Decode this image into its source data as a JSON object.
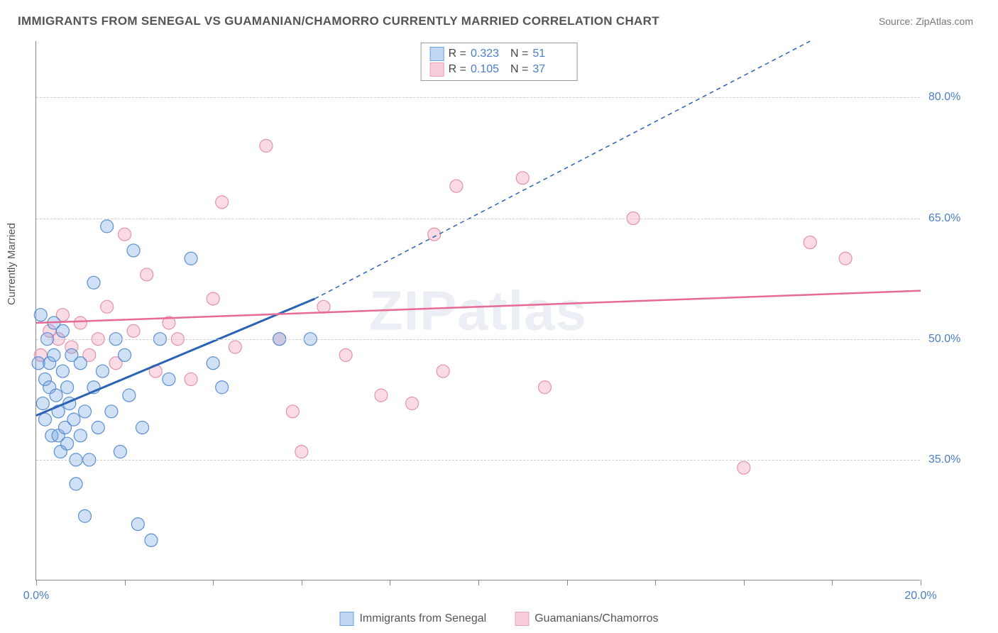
{
  "title": "IMMIGRANTS FROM SENEGAL VS GUAMANIAN/CHAMORRO CURRENTLY MARRIED CORRELATION CHART",
  "source_label": "Source: ZipAtlas.com",
  "ylabel": "Currently Married",
  "watermark": "ZIPatlas",
  "chart": {
    "type": "scatter",
    "xlim": [
      0,
      20
    ],
    "ylim": [
      20,
      87
    ],
    "x_ticks": [
      0,
      2,
      4,
      6,
      8,
      10,
      12,
      14,
      16,
      18,
      20
    ],
    "x_tick_labels_show": {
      "0": "0.0%",
      "20": "20.0%"
    },
    "y_grid": [
      35,
      50,
      65,
      80
    ],
    "y_tick_labels": {
      "35": "35.0%",
      "50": "50.0%",
      "65": "65.0%",
      "80": "80.0%"
    },
    "background_color": "#ffffff",
    "grid_color": "#cccccc",
    "axis_color": "#888888",
    "marker_radius": 9,
    "marker_stroke_width": 1.2,
    "series": [
      {
        "id": "senegal",
        "label": "Immigrants from Senegal",
        "fill": "rgba(120,165,225,0.35)",
        "stroke": "#5a8fd4",
        "swatch_fill": "#bfd7f2",
        "swatch_border": "#6aa3e0",
        "R": "0.323",
        "N": "51",
        "trend": {
          "x1": 0,
          "y1": 40.5,
          "x2": 6.3,
          "y2": 55,
          "ext_x2": 17.5,
          "ext_y2": 87,
          "color": "#2a62b5",
          "width": 3
        },
        "points": [
          [
            0.05,
            47
          ],
          [
            0.1,
            53
          ],
          [
            0.15,
            42
          ],
          [
            0.2,
            45
          ],
          [
            0.2,
            40
          ],
          [
            0.25,
            50
          ],
          [
            0.3,
            47
          ],
          [
            0.3,
            44
          ],
          [
            0.35,
            38
          ],
          [
            0.4,
            48
          ],
          [
            0.4,
            52
          ],
          [
            0.45,
            43
          ],
          [
            0.5,
            38
          ],
          [
            0.5,
            41
          ],
          [
            0.55,
            36
          ],
          [
            0.6,
            46
          ],
          [
            0.6,
            51
          ],
          [
            0.65,
            39
          ],
          [
            0.7,
            44
          ],
          [
            0.7,
            37
          ],
          [
            0.75,
            42
          ],
          [
            0.8,
            48
          ],
          [
            0.85,
            40
          ],
          [
            0.9,
            35
          ],
          [
            0.9,
            32
          ],
          [
            1.0,
            38
          ],
          [
            1.0,
            47
          ],
          [
            1.1,
            28
          ],
          [
            1.1,
            41
          ],
          [
            1.2,
            35
          ],
          [
            1.3,
            44
          ],
          [
            1.3,
            57
          ],
          [
            1.4,
            39
          ],
          [
            1.5,
            46
          ],
          [
            1.6,
            64
          ],
          [
            1.7,
            41
          ],
          [
            1.8,
            50
          ],
          [
            1.9,
            36
          ],
          [
            2.0,
            48
          ],
          [
            2.1,
            43
          ],
          [
            2.2,
            61
          ],
          [
            2.3,
            27
          ],
          [
            2.4,
            39
          ],
          [
            2.6,
            25
          ],
          [
            2.8,
            50
          ],
          [
            3.0,
            45
          ],
          [
            3.5,
            60
          ],
          [
            4.0,
            47
          ],
          [
            4.2,
            44
          ],
          [
            5.5,
            50
          ],
          [
            6.2,
            50
          ]
        ]
      },
      {
        "id": "guam",
        "label": "Guamanians/Chamorros",
        "fill": "rgba(240,150,175,0.35)",
        "stroke": "#e592ac",
        "swatch_fill": "#f6cdd9",
        "swatch_border": "#e9a4ba",
        "R": "0.105",
        "N": "37",
        "trend": {
          "x1": 0,
          "y1": 52,
          "x2": 20,
          "y2": 56,
          "color": "#e76a95",
          "width": 2.5
        },
        "points": [
          [
            0.1,
            48
          ],
          [
            0.3,
            51
          ],
          [
            0.5,
            50
          ],
          [
            0.6,
            53
          ],
          [
            0.8,
            49
          ],
          [
            1.0,
            52
          ],
          [
            1.2,
            48
          ],
          [
            1.4,
            50
          ],
          [
            1.6,
            54
          ],
          [
            1.8,
            47
          ],
          [
            2.0,
            63
          ],
          [
            2.2,
            51
          ],
          [
            2.5,
            58
          ],
          [
            2.7,
            46
          ],
          [
            3.0,
            52
          ],
          [
            3.2,
            50
          ],
          [
            3.5,
            45
          ],
          [
            4.0,
            55
          ],
          [
            4.2,
            67
          ],
          [
            4.5,
            49
          ],
          [
            5.2,
            74
          ],
          [
            5.5,
            50
          ],
          [
            5.8,
            41
          ],
          [
            6.0,
            36
          ],
          [
            6.5,
            54
          ],
          [
            7.0,
            48
          ],
          [
            7.8,
            43
          ],
          [
            8.5,
            42
          ],
          [
            9.0,
            63
          ],
          [
            9.2,
            46
          ],
          [
            9.5,
            69
          ],
          [
            11.0,
            70
          ],
          [
            11.5,
            44
          ],
          [
            13.5,
            65
          ],
          [
            16.0,
            34
          ],
          [
            17.5,
            62
          ],
          [
            18.3,
            60
          ]
        ]
      }
    ]
  },
  "top_legend": {
    "r_label": "R =",
    "n_label": "N ="
  }
}
